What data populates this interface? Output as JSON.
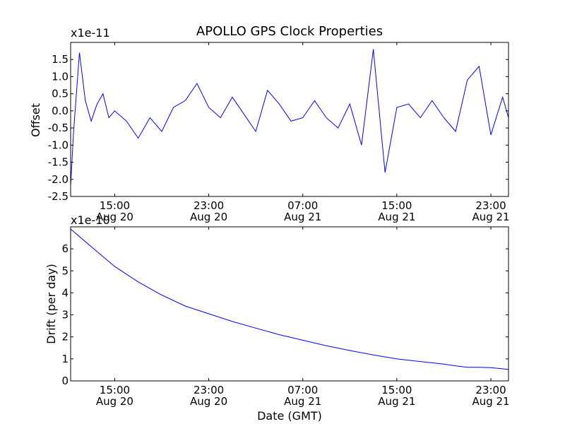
{
  "chart_data": [
    {
      "type": "line",
      "title": "APOLLO GPS Clock Properties",
      "xlabel": "",
      "ylabel": "Offset",
      "scale_label": "x1e-11",
      "ylim": [
        -2.5,
        2.0
      ],
      "yticks": [
        "-2.5",
        "-2.0",
        "-1.5",
        "-1.0",
        "-0.5",
        "0.0",
        "0.5",
        "1.0",
        "1.5"
      ],
      "xlim": [
        "2012-08-20 11:15",
        "2012-08-22 00:30"
      ],
      "xticks": [
        {
          "x": "2012-08-20 15:00",
          "time": "15:00",
          "date": "Aug 20"
        },
        {
          "x": "2012-08-20 23:00",
          "time": "23:00",
          "date": "Aug 20"
        },
        {
          "x": "2012-08-21 07:00",
          "time": "07:00",
          "date": "Aug 21"
        },
        {
          "x": "2012-08-21 15:00",
          "time": "15:00",
          "date": "Aug 21"
        },
        {
          "x": "2012-08-21 23:00",
          "time": "23:00",
          "date": "Aug 21"
        }
      ],
      "color": "#0000ff",
      "series": [
        {
          "x": [
            "2012-08-20 11:15",
            "2012-08-20 11:30",
            "2012-08-20 12:00",
            "2012-08-20 12:30",
            "2012-08-20 13:00",
            "2012-08-20 13:30",
            "2012-08-20 14:00",
            "2012-08-20 14:30",
            "2012-08-20 15:00",
            "2012-08-20 16:00",
            "2012-08-20 17:00",
            "2012-08-20 18:00",
            "2012-08-20 19:00",
            "2012-08-20 20:00",
            "2012-08-20 21:00",
            "2012-08-20 22:00",
            "2012-08-20 23:00",
            "2012-08-21 00:00",
            "2012-08-21 01:00",
            "2012-08-21 02:00",
            "2012-08-21 03:00",
            "2012-08-21 04:00",
            "2012-08-21 05:00",
            "2012-08-21 06:00",
            "2012-08-21 07:00",
            "2012-08-21 08:00",
            "2012-08-21 09:00",
            "2012-08-21 10:00",
            "2012-08-21 11:00",
            "2012-08-21 12:00",
            "2012-08-21 13:00",
            "2012-08-21 14:00",
            "2012-08-21 15:00",
            "2012-08-21 16:00",
            "2012-08-21 17:00",
            "2012-08-21 18:00",
            "2012-08-21 19:00",
            "2012-08-21 20:00",
            "2012-08-21 21:00",
            "2012-08-21 22:00",
            "2012-08-21 23:00",
            "2012-08-22 00:00",
            "2012-08-22 00:30"
          ],
          "values": [
            -2.2,
            -0.6,
            1.7,
            0.3,
            -0.3,
            0.2,
            0.5,
            -0.2,
            0.0,
            -0.3,
            -0.8,
            -0.2,
            -0.6,
            0.1,
            0.3,
            0.8,
            0.1,
            -0.2,
            0.4,
            -0.1,
            -0.6,
            0.6,
            0.2,
            -0.3,
            -0.2,
            0.3,
            -0.2,
            -0.5,
            0.2,
            -1.0,
            1.8,
            -1.8,
            0.1,
            0.2,
            -0.2,
            0.3,
            -0.2,
            -0.6,
            0.9,
            1.3,
            -0.7,
            0.4,
            -0.2
          ]
        }
      ]
    },
    {
      "type": "line",
      "title": "",
      "xlabel": "Date (GMT)",
      "ylabel": "Drift (per day)",
      "scale_label": "x1e-10",
      "ylim": [
        0,
        7
      ],
      "yticks": [
        "0",
        "1",
        "2",
        "3",
        "4",
        "5",
        "6"
      ],
      "xlim": [
        "2012-08-20 11:15",
        "2012-08-22 00:30"
      ],
      "xticks": [
        {
          "x": "2012-08-20 15:00",
          "time": "15:00",
          "date": "Aug 20"
        },
        {
          "x": "2012-08-20 23:00",
          "time": "23:00",
          "date": "Aug 20"
        },
        {
          "x": "2012-08-21 07:00",
          "time": "07:00",
          "date": "Aug 21"
        },
        {
          "x": "2012-08-21 15:00",
          "time": "15:00",
          "date": "Aug 21"
        },
        {
          "x": "2012-08-21 23:00",
          "time": "23:00",
          "date": "Aug 21"
        }
      ],
      "color": "#0000ff",
      "series": [
        {
          "x": [
            "2012-08-20 11:15",
            "2012-08-20 13:00",
            "2012-08-20 15:00",
            "2012-08-20 17:00",
            "2012-08-20 19:00",
            "2012-08-20 21:00",
            "2012-08-20 23:00",
            "2012-08-21 01:00",
            "2012-08-21 03:00",
            "2012-08-21 05:00",
            "2012-08-21 07:00",
            "2012-08-21 09:00",
            "2012-08-21 11:00",
            "2012-08-21 13:00",
            "2012-08-21 15:00",
            "2012-08-21 17:00",
            "2012-08-21 19:00",
            "2012-08-21 20:00",
            "2012-08-21 21:00",
            "2012-08-21 22:00",
            "2012-08-21 23:00",
            "2012-08-22 00:30"
          ],
          "values": [
            6.9,
            6.1,
            5.2,
            4.5,
            3.9,
            3.4,
            3.05,
            2.7,
            2.4,
            2.1,
            1.85,
            1.6,
            1.38,
            1.18,
            1.0,
            0.88,
            0.76,
            0.68,
            0.62,
            0.62,
            0.6,
            0.52
          ]
        }
      ]
    }
  ]
}
